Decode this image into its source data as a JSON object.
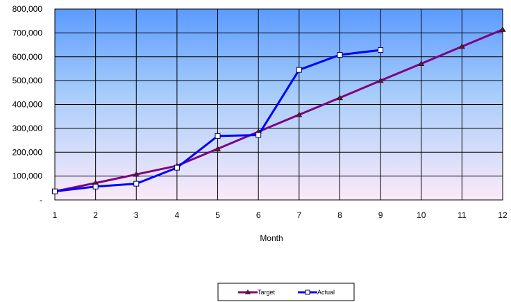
{
  "chart_data": {
    "type": "line",
    "title": "",
    "xlabel": "Month",
    "ylabel": "",
    "x": [
      1,
      2,
      3,
      4,
      5,
      6,
      7,
      8,
      9,
      10,
      11,
      12
    ],
    "x_tick_labels": [
      "1",
      "2",
      "3",
      "4",
      "5",
      "6",
      "7",
      "8",
      "9",
      "10",
      "11",
      "12"
    ],
    "ylim": [
      0,
      800000
    ],
    "y_ticks": [
      0,
      100000,
      200000,
      300000,
      400000,
      500000,
      600000,
      700000,
      800000
    ],
    "y_tick_labels": [
      "-",
      "100,000",
      "200,000",
      "300,000",
      "400,000",
      "500,000",
      "600,000",
      "700,000",
      "800,000"
    ],
    "grid": true,
    "legend_position": "bottom",
    "series": [
      {
        "name": "Target",
        "marker": "triangle",
        "color": "#800080",
        "values": [
          36000,
          71000,
          107000,
          143000,
          214000,
          286000,
          357000,
          428000,
          500000,
          571000,
          643000,
          714000
        ]
      },
      {
        "name": "Actual",
        "marker": "square",
        "color": "#0000ff",
        "values": [
          36000,
          56000,
          68000,
          135000,
          268000,
          272000,
          545000,
          608000,
          628000,
          null,
          null,
          null
        ]
      }
    ]
  }
}
